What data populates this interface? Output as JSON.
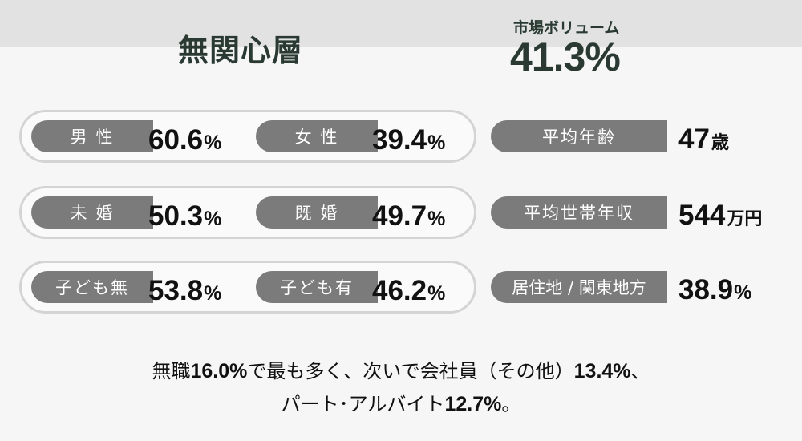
{
  "segment": {
    "title": "無関心層"
  },
  "market_volume": {
    "label": "市場ボリューム",
    "value": "41.3",
    "unit": "%"
  },
  "rows": [
    {
      "left": {
        "label": "男 性",
        "value": "60.6",
        "unit": "%"
      },
      "right": {
        "label": "女 性",
        "value": "39.4",
        "unit": "%"
      }
    },
    {
      "left": {
        "label": "未 婚",
        "value": "50.3",
        "unit": "%"
      },
      "right": {
        "label": "既 婚",
        "value": "49.7",
        "unit": "%"
      }
    },
    {
      "left": {
        "label": "子ども無",
        "value": "53.8",
        "unit": "%"
      },
      "right": {
        "label": "子ども有",
        "value": "46.2",
        "unit": "%"
      }
    }
  ],
  "stats": [
    {
      "label": "平均年齢",
      "value": "47",
      "unit": "歳"
    },
    {
      "label": "平均世帯年収",
      "value": "544",
      "unit": "万円"
    },
    {
      "label": "居住地 / 関東地方",
      "value": "38.9",
      "unit": "%"
    }
  ],
  "occupation": {
    "line1": {
      "prefix": "無職",
      "v1": "16.0%",
      "mid": "で最も多く、次いで会社員（その他）",
      "v2": "13.4%",
      "suffix": "、"
    },
    "line2": {
      "prefix": "パート･アルバイト",
      "v1": "12.7%",
      "suffix": "。"
    }
  }
}
